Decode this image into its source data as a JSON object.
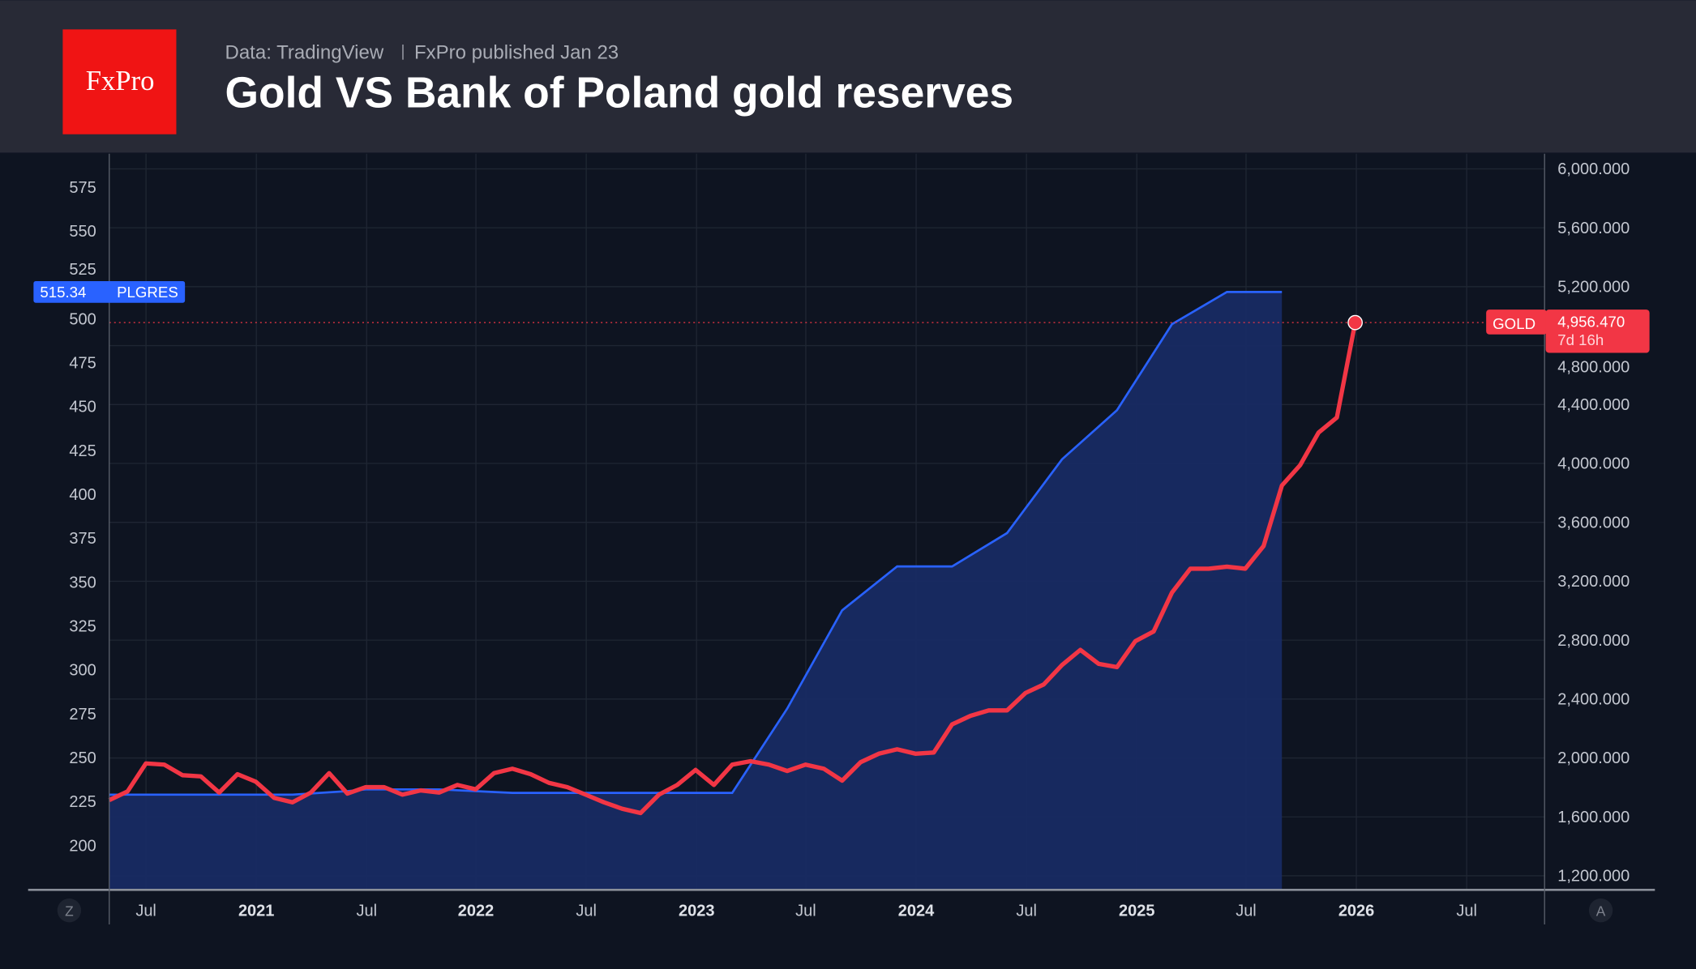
{
  "header": {
    "logo_text": "FxPro",
    "source": "Data: TradingView",
    "publisher": "FxPro published Jan 23",
    "title": "Gold VS Bank of Poland gold reserves"
  },
  "controls": {
    "left_scale_button": "Z",
    "right_scale_button": "A"
  },
  "colors": {
    "gold": "#f23645",
    "plgres": "#2962ff",
    "plgres_fill": "#182a63",
    "background": "#0e1421",
    "header_bg": "#282a36",
    "logo_bg": "#f01414"
  },
  "chart_data": {
    "type": "line",
    "title": "Gold VS Bank of Poland gold reserves",
    "xlabel": "",
    "ylabel": "",
    "x_ticks": [
      "Jul",
      "2021",
      "Jul",
      "2022",
      "Jul",
      "2023",
      "Jul",
      "2024",
      "Jul",
      "2025",
      "Jul",
      "2026",
      "Jul"
    ],
    "left_axis": {
      "ticks": [
        "575",
        "550",
        "525",
        "500",
        "475",
        "450",
        "425",
        "400",
        "375",
        "350",
        "325",
        "300",
        "275",
        "250",
        "225",
        "200"
      ],
      "range": [
        175,
        590
      ]
    },
    "right_axis": {
      "ticks": [
        "6,000.000",
        "5,600.000",
        "5,200.000",
        "4,800.000",
        "4,400.000",
        "4,000.000",
        "3,600.000",
        "3,200.000",
        "2,800.000",
        "2,400.000",
        "2,000.000",
        "1,600.000",
        "1,200.000"
      ],
      "range": [
        1000,
        6200
      ]
    },
    "grid": true,
    "series": [
      {
        "name": "GOLD",
        "axis": "right",
        "style": "line",
        "color": "#f23645",
        "last_value_label": "4,956.470",
        "countdown": "7d 16h",
        "x": [
          "2020-05",
          "2020-06",
          "2020-07",
          "2020-08",
          "2020-09",
          "2020-10",
          "2020-11",
          "2020-12",
          "2021-01",
          "2021-02",
          "2021-03",
          "2021-04",
          "2021-05",
          "2021-06",
          "2021-07",
          "2021-08",
          "2021-09",
          "2021-10",
          "2021-11",
          "2021-12",
          "2022-01",
          "2022-02",
          "2022-03",
          "2022-04",
          "2022-05",
          "2022-06",
          "2022-07",
          "2022-08",
          "2022-09",
          "2022-10",
          "2022-11",
          "2022-12",
          "2023-01",
          "2023-02",
          "2023-03",
          "2023-04",
          "2023-05",
          "2023-06",
          "2023-07",
          "2023-08",
          "2023-09",
          "2023-10",
          "2023-11",
          "2023-12",
          "2024-01",
          "2024-02",
          "2024-03",
          "2024-04",
          "2024-05",
          "2024-06",
          "2024-07",
          "2024-08",
          "2024-09",
          "2024-10",
          "2024-11",
          "2024-12",
          "2025-01",
          "2025-02",
          "2025-03",
          "2025-04",
          "2025-05",
          "2025-06",
          "2025-07",
          "2025-08",
          "2025-09",
          "2025-10",
          "2025-11",
          "2025-12",
          "2026-01"
        ],
        "values": [
          1714,
          1773,
          1963,
          1955,
          1883,
          1875,
          1765,
          1890,
          1839,
          1729,
          1699,
          1765,
          1897,
          1758,
          1802,
          1802,
          1751,
          1780,
          1765,
          1817,
          1787,
          1897,
          1927,
          1890,
          1831,
          1802,
          1751,
          1699,
          1655,
          1626,
          1751,
          1817,
          1919,
          1817,
          1955,
          1978,
          1955,
          1912,
          1955,
          1927,
          1846,
          1971,
          2029,
          2059,
          2029,
          2037,
          2228,
          2286,
          2323,
          2323,
          2441,
          2499,
          2631,
          2734,
          2639,
          2617,
          2793,
          2859,
          3123,
          3285,
          3285,
          3299,
          3285,
          3439,
          3850,
          3989,
          4209,
          4312,
          4956.47
        ]
      },
      {
        "name": "PLGRES",
        "axis": "left",
        "style": "area",
        "color": "#2962ff",
        "last_value_label": "515.34",
        "x": [
          "2020-05",
          "2021-03",
          "2021-06",
          "2021-07",
          "2021-11",
          "2022-03",
          "2023-03",
          "2023-06",
          "2023-09",
          "2023-12",
          "2024-03",
          "2024-06",
          "2024-09",
          "2024-12",
          "2025-03",
          "2025-06",
          "2025-09"
        ],
        "values": [
          229,
          229,
          231,
          232,
          232,
          230,
          230,
          278,
          334,
          359,
          359,
          378,
          420,
          448,
          497,
          515.34,
          515.34
        ]
      }
    ]
  }
}
